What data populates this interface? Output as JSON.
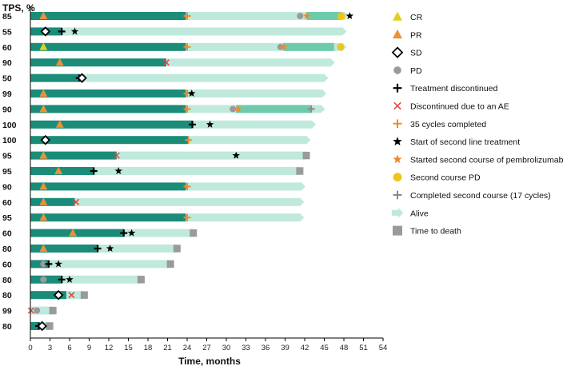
{
  "chart_data": {
    "type": "swimmer",
    "ylabel": "TPS, %",
    "xlabel": "Time, months",
    "xlim": [
      0,
      54
    ],
    "xticks": [
      0,
      3,
      6,
      9,
      12,
      15,
      18,
      21,
      24,
      27,
      30,
      33,
      36,
      39,
      42,
      45,
      48,
      51,
      54
    ],
    "colors": {
      "first_course": "#1a8c78",
      "second_course": "#6dcbad",
      "follow_up": "#bfe9dc",
      "response_pr": "#e8923a",
      "response_cr": "#dfd21f",
      "sd_edge": "#000000",
      "pd": "#9a9a9a",
      "discontinued": "#000000",
      "ae": "#e0453c",
      "cycles35": "#f08a28",
      "second_line": "#000000",
      "second_course_start": "#f08a28",
      "second_pd": "#f0c419",
      "completed_second": "#8a8a8a",
      "death": "#9a9a9a"
    },
    "patients": [
      {
        "tps": "85",
        "treat": 23.8,
        "end": 48.6,
        "second": [
          42.3,
          47.6
        ],
        "fate": "alive",
        "events": [
          {
            "t": "PR",
            "x": 2
          },
          {
            "t": "C35",
            "x": 24
          },
          {
            "t": "PD",
            "x": 41.3
          },
          {
            "t": "S2",
            "x": 42.3
          },
          {
            "t": "CR",
            "x": 47.6
          },
          {
            "t": "SPD",
            "x": 47.6
          },
          {
            "t": "SL",
            "x": 48.9
          }
        ]
      },
      {
        "tps": "55",
        "treat": 4.8,
        "end": 48.3,
        "fate": "alive",
        "events": [
          {
            "t": "SD",
            "x": 2.3
          },
          {
            "t": "DISC",
            "x": 4.8
          },
          {
            "t": "SL",
            "x": 6.8
          }
        ]
      },
      {
        "tps": "60",
        "treat": 23.8,
        "end": 48.3,
        "second": [
          38.7,
          46.5
        ],
        "fate": "alive",
        "events": [
          {
            "t": "CR",
            "x": 2
          },
          {
            "t": "C35",
            "x": 24
          },
          {
            "t": "PD",
            "x": 38.3
          },
          {
            "t": "S2",
            "x": 38.8
          },
          {
            "t": "SPD",
            "x": 47.5
          }
        ]
      },
      {
        "tps": "90",
        "treat": 20.8,
        "end": 46.5,
        "fate": "alive",
        "events": [
          {
            "t": "PR",
            "x": 4.5
          },
          {
            "t": "AE",
            "x": 20.8
          }
        ]
      },
      {
        "tps": "50",
        "treat": 7.5,
        "end": 45.5,
        "fate": "alive",
        "events": [
          {
            "t": "DISC",
            "x": 7.5
          },
          {
            "t": "SD",
            "x": 7.9
          }
        ]
      },
      {
        "tps": "99",
        "treat": 23.8,
        "end": 45.2,
        "fate": "alive",
        "events": [
          {
            "t": "PR",
            "x": 2
          },
          {
            "t": "C35",
            "x": 24
          },
          {
            "t": "SL",
            "x": 24.7
          }
        ]
      },
      {
        "tps": "90",
        "treat": 23.8,
        "end": 45.0,
        "second": [
          31.5,
          43.0
        ],
        "fate": "alive",
        "events": [
          {
            "t": "PR",
            "x": 2
          },
          {
            "t": "C35",
            "x": 24
          },
          {
            "t": "PD",
            "x": 31.0
          },
          {
            "t": "S2",
            "x": 31.8
          },
          {
            "t": "COMP",
            "x": 43.0
          }
        ]
      },
      {
        "tps": "100",
        "treat": 24.8,
        "end": 43.6,
        "fate": "alive",
        "events": [
          {
            "t": "PR",
            "x": 4.5
          },
          {
            "t": "DISC",
            "x": 24.8
          },
          {
            "t": "SL",
            "x": 27.5
          }
        ]
      },
      {
        "tps": "100",
        "treat": 24.2,
        "end": 42.8,
        "fate": "alive",
        "events": [
          {
            "t": "SD",
            "x": 2.3
          },
          {
            "t": "C35",
            "x": 24.2
          }
        ]
      },
      {
        "tps": "95",
        "treat": 13.2,
        "end": 42.8,
        "fate": "death",
        "events": [
          {
            "t": "PR",
            "x": 2
          },
          {
            "t": "AE",
            "x": 13.2
          },
          {
            "t": "SL",
            "x": 31.5
          }
        ]
      },
      {
        "tps": "95",
        "treat": 9.7,
        "end": 41.8,
        "fate": "death",
        "events": [
          {
            "t": "PR",
            "x": 4.3
          },
          {
            "t": "DISC",
            "x": 9.7
          },
          {
            "t": "SL",
            "x": 13.5
          }
        ]
      },
      {
        "tps": "90",
        "treat": 23.8,
        "end": 42.0,
        "fate": "alive",
        "events": [
          {
            "t": "PR",
            "x": 2
          },
          {
            "t": "C35",
            "x": 24
          }
        ]
      },
      {
        "tps": "60",
        "treat": 6.8,
        "end": 41.8,
        "fate": "alive",
        "events": [
          {
            "t": "PR",
            "x": 2
          },
          {
            "t": "AE",
            "x": 7.0
          }
        ]
      },
      {
        "tps": "95",
        "treat": 23.8,
        "end": 41.8,
        "fate": "alive",
        "events": [
          {
            "t": "PR",
            "x": 2
          },
          {
            "t": "C35",
            "x": 24
          }
        ]
      },
      {
        "tps": "60",
        "treat": 14.3,
        "end": 25.5,
        "fate": "death",
        "events": [
          {
            "t": "PR",
            "x": 6.5
          },
          {
            "t": "DISC",
            "x": 14.3
          },
          {
            "t": "SL",
            "x": 15.5
          }
        ]
      },
      {
        "tps": "80",
        "treat": 10.3,
        "end": 23.0,
        "fate": "death",
        "events": [
          {
            "t": "PR",
            "x": 2
          },
          {
            "t": "DISC",
            "x": 10.3
          },
          {
            "t": "SL",
            "x": 12.2
          }
        ]
      },
      {
        "tps": "60",
        "treat": 2.8,
        "end": 22.0,
        "fate": "death",
        "events": [
          {
            "t": "PD",
            "x": 2
          },
          {
            "t": "DISC",
            "x": 2.8
          },
          {
            "t": "SL",
            "x": 4.3
          }
        ]
      },
      {
        "tps": "80",
        "treat": 4.8,
        "end": 17.5,
        "fate": "death",
        "events": [
          {
            "t": "PD",
            "x": 2
          },
          {
            "t": "DISC",
            "x": 4.8
          },
          {
            "t": "SL",
            "x": 6.0
          }
        ]
      },
      {
        "tps": "80",
        "treat": 5.5,
        "end": 8.8,
        "fate": "death",
        "events": [
          {
            "t": "SD",
            "x": 4.3
          },
          {
            "t": "AE",
            "x": 6.3
          }
        ]
      },
      {
        "tps": "99",
        "treat": 0,
        "end": 4.0,
        "fate": "death",
        "events": [
          {
            "t": "AE",
            "x": 0.1
          },
          {
            "t": "PD",
            "x": 1.0
          }
        ]
      },
      {
        "tps": "80",
        "treat": 1.3,
        "end": 3.5,
        "fate": "death",
        "events": [
          {
            "t": "DISC",
            "x": 1.3
          },
          {
            "t": "SD",
            "x": 1.8
          }
        ]
      }
    ],
    "legend": [
      {
        "key": "CR",
        "label": "CR"
      },
      {
        "key": "PR",
        "label": "PR"
      },
      {
        "key": "SD",
        "label": "SD"
      },
      {
        "key": "PD",
        "label": "PD"
      },
      {
        "key": "DISC",
        "label": "Treatment discontinued"
      },
      {
        "key": "AE",
        "label": "Discontinued due to an AE"
      },
      {
        "key": "C35",
        "label": "35 cycles completed"
      },
      {
        "key": "SL",
        "label": "Start of second line treatment"
      },
      {
        "key": "S2",
        "label": "Started second course of pembrolizumab"
      },
      {
        "key": "SPD",
        "label": "Second course PD"
      },
      {
        "key": "COMP",
        "label": "Completed second course (17 cycles)"
      },
      {
        "key": "ALIVE",
        "label": "Alive"
      },
      {
        "key": "DEATH",
        "label": "Time to death"
      }
    ]
  }
}
